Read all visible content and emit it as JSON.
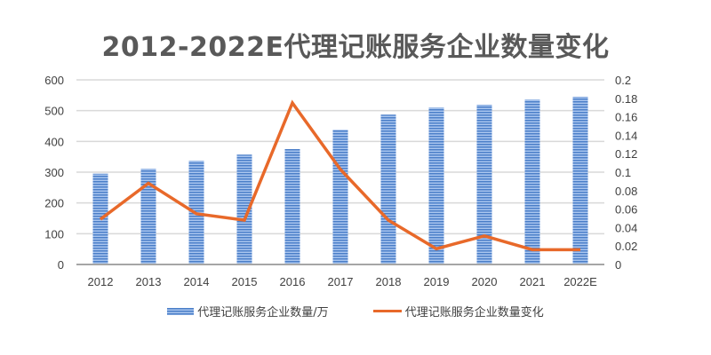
{
  "chart_data": {
    "type": "bar+line",
    "title": "2012-2022E代理记账服务企业数量变化",
    "categories": [
      "2012",
      "2013",
      "2014",
      "2015",
      "2016",
      "2017",
      "2018",
      "2019",
      "2020",
      "2021",
      "2022E"
    ],
    "series": [
      {
        "name": "代理记账服务企业数量/万",
        "type": "bar",
        "axis": "left",
        "color": "#4a7ec8",
        "values": [
          295,
          311,
          337,
          357,
          375,
          438,
          487,
          510,
          519,
          536,
          545
        ]
      },
      {
        "name": "代理记账服务企业数量变化",
        "type": "line",
        "axis": "right",
        "color": "#e8692a",
        "values": [
          0.049,
          0.088,
          0.055,
          0.048,
          0.175,
          0.103,
          0.048,
          0.017,
          0.031,
          0.016,
          0.016
        ]
      }
    ],
    "y_left": {
      "ticks": [
        "0",
        "100",
        "200",
        "300",
        "400",
        "500",
        "600"
      ],
      "ylim": [
        0,
        600
      ]
    },
    "y_right": {
      "ticks": [
        "0",
        "0.02",
        "0.04",
        "0.06",
        "0.08",
        "0.1",
        "0.12",
        "0.14",
        "0.16",
        "0.18",
        "0.2"
      ],
      "ylim": [
        0,
        0.2
      ]
    },
    "grid": true,
    "legend_position": "bottom"
  }
}
